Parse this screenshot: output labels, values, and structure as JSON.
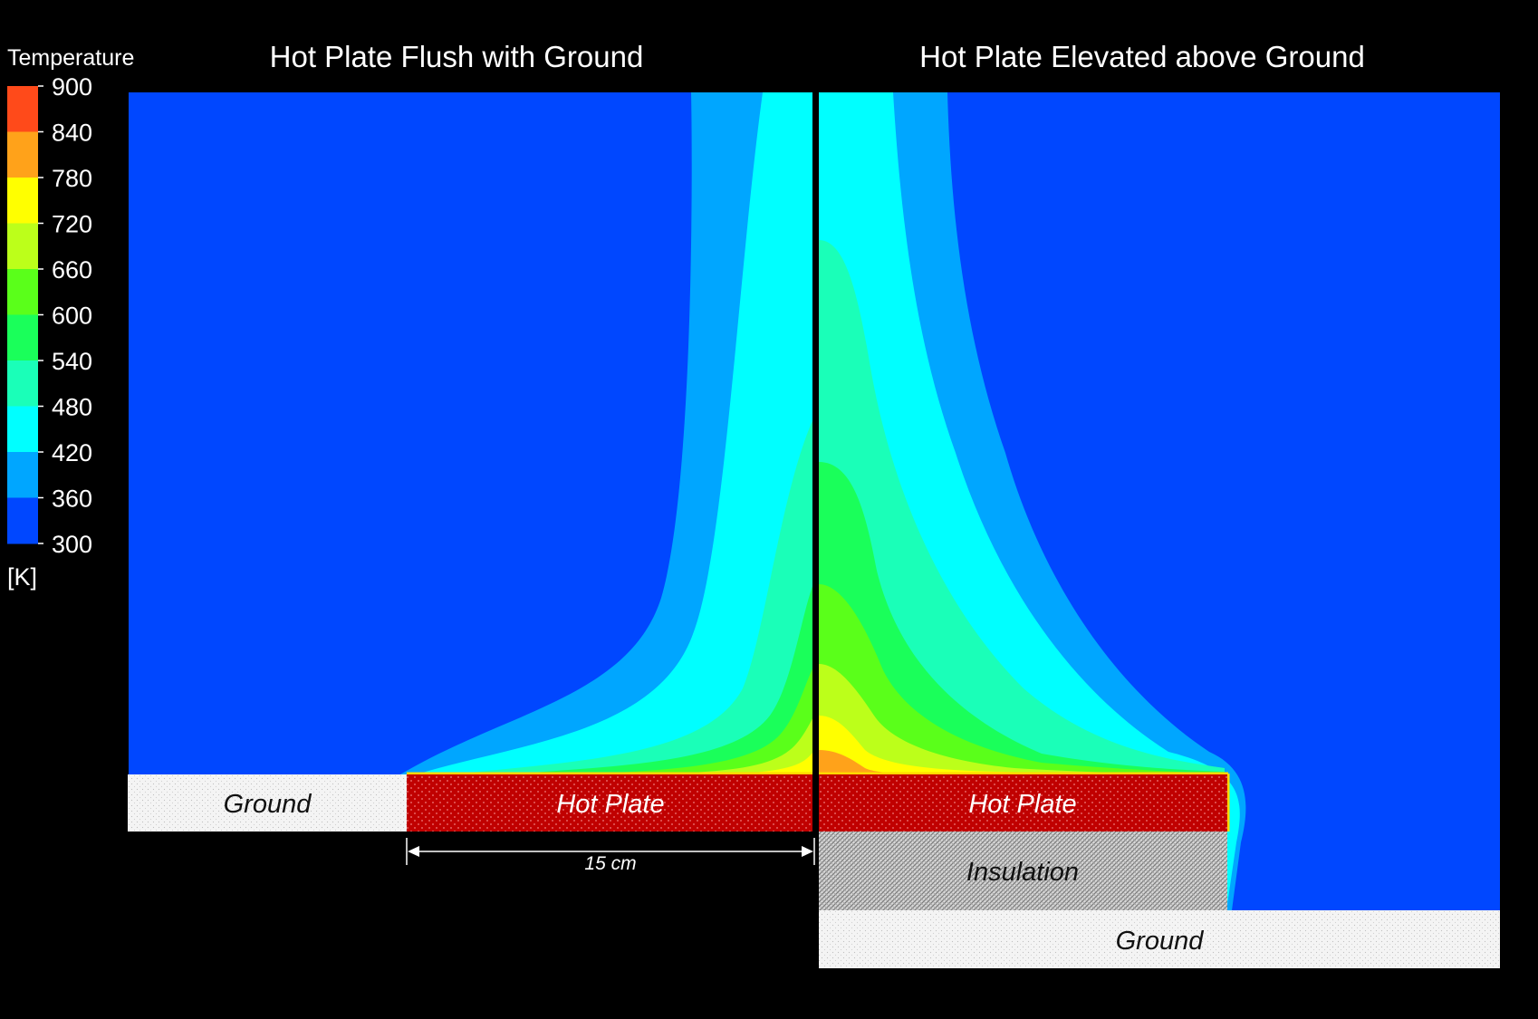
{
  "legend": {
    "title": "Temperature",
    "unit": "[K]",
    "ticks": [
      "900",
      "840",
      "780",
      "720",
      "660",
      "600",
      "540",
      "480",
      "420",
      "360",
      "300"
    ],
    "colors": [
      "#FF4A1A",
      "#FFA21A",
      "#FFFF00",
      "#BCFF1A",
      "#5AFF1A",
      "#1AFF5A",
      "#1AFFB8",
      "#00FFFF",
      "#00A6FF",
      "#0047FF"
    ]
  },
  "left_panel": {
    "title": "Hot Plate Flush with Ground",
    "ground_label": "Ground",
    "plate_label": "Hot Plate",
    "dimension_label": "15 cm"
  },
  "right_panel": {
    "title": "Hot Plate Elevated above Ground",
    "plate_label": "Hot Plate",
    "insulation_label": "Insulation",
    "ground_label": "Ground"
  },
  "colors": {
    "background": "#000000",
    "ambient": "#0047FF",
    "plate": "#C00000",
    "ground": "#F2F2F2"
  }
}
